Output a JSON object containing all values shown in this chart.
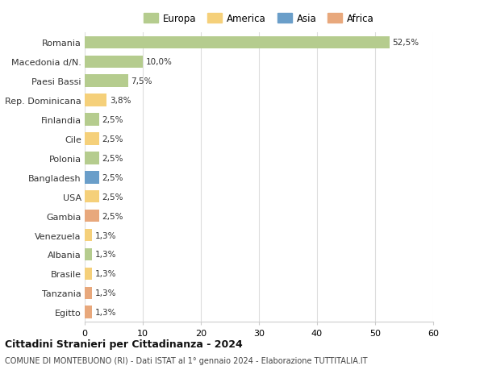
{
  "title": "Cittadini Stranieri per Cittadinanza - 2024",
  "subtitle": "COMUNE DI MONTEBUONO (RI) - Dati ISTAT al 1° gennaio 2024 - Elaborazione TUTTITALIA.IT",
  "countries": [
    "Romania",
    "Macedonia d/N.",
    "Paesi Bassi",
    "Rep. Dominicana",
    "Finlandia",
    "Cile",
    "Polonia",
    "Bangladesh",
    "USA",
    "Gambia",
    "Venezuela",
    "Albania",
    "Brasile",
    "Tanzania",
    "Egitto"
  ],
  "values": [
    52.5,
    10.0,
    7.5,
    3.8,
    2.5,
    2.5,
    2.5,
    2.5,
    2.5,
    2.5,
    1.3,
    1.3,
    1.3,
    1.3,
    1.3
  ],
  "labels": [
    "52,5%",
    "10,0%",
    "7,5%",
    "3,8%",
    "2,5%",
    "2,5%",
    "2,5%",
    "2,5%",
    "2,5%",
    "2,5%",
    "1,3%",
    "1,3%",
    "1,3%",
    "1,3%",
    "1,3%"
  ],
  "continents": [
    "Europa",
    "Europa",
    "Europa",
    "America",
    "Europa",
    "America",
    "Europa",
    "Asia",
    "America",
    "Africa",
    "America",
    "Europa",
    "America",
    "Africa",
    "Africa"
  ],
  "continent_colors": {
    "Europa": "#b5cc8e",
    "America": "#f5d07a",
    "Asia": "#6a9ec9",
    "Africa": "#e8a87c"
  },
  "legend_order": [
    "Europa",
    "America",
    "Asia",
    "Africa"
  ],
  "xlim": [
    0,
    60
  ],
  "xticks": [
    0,
    10,
    20,
    30,
    40,
    50,
    60
  ],
  "background_color": "#ffffff",
  "grid_color": "#dddddd",
  "bar_height": 0.65,
  "figsize": [
    6.0,
    4.6
  ],
  "dpi": 100
}
